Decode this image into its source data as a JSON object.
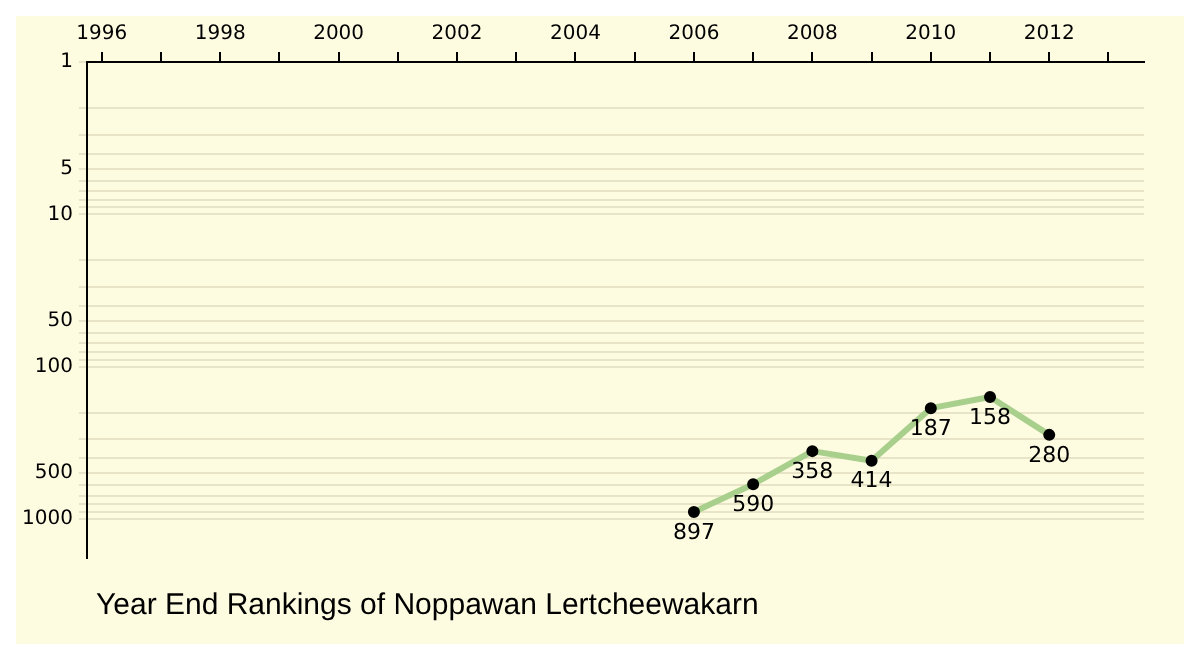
{
  "chart_data": {
    "type": "line",
    "title": "Year End Rankings of Noppawan Lertcheewakarn",
    "x": [
      2006,
      2007,
      2008,
      2009,
      2010,
      2011,
      2012
    ],
    "series": [
      {
        "color": "#a9cf8c",
        "values": [
          897,
          590,
          358,
          414,
          187,
          158,
          280
        ]
      }
    ],
    "xlim": [
      1995.75,
      2013.6
    ],
    "xticks": [
      1996,
      {
        "value": 1997,
        "label": null
      },
      1998,
      {
        "value": 1999,
        "label": null
      },
      2000,
      {
        "value": 2001,
        "label": null
      },
      2002,
      {
        "value": 2003,
        "label": null
      },
      2004,
      {
        "value": 2005,
        "label": null
      },
      2006,
      {
        "value": 2007,
        "label": null
      },
      2008,
      {
        "value": 2009,
        "label": null
      },
      2010,
      {
        "value": 2011,
        "label": null
      },
      2012,
      {
        "value": 2013,
        "label": null
      }
    ],
    "ylim": [
      1800,
      1
    ],
    "yticks": [
      1,
      {
        "value": 2,
        "label": null
      },
      {
        "value": 3,
        "label": null
      },
      {
        "value": 4,
        "label": null
      },
      5,
      {
        "value": 6,
        "label": null
      },
      {
        "value": 7,
        "label": null
      },
      {
        "value": 8,
        "label": null
      },
      {
        "value": 9,
        "label": null
      },
      10,
      {
        "value": 20,
        "label": null
      },
      {
        "value": 30,
        "label": null
      },
      {
        "value": 40,
        "label": null
      },
      50,
      {
        "value": 60,
        "label": null
      },
      {
        "value": 70,
        "label": null
      },
      {
        "value": 80,
        "label": null
      },
      {
        "value": 90,
        "label": null
      },
      100,
      {
        "value": 200,
        "label": null
      },
      {
        "value": 300,
        "label": null
      },
      {
        "value": 400,
        "label": null
      },
      500,
      {
        "value": 600,
        "label": null
      },
      {
        "value": 700,
        "label": null
      },
      {
        "value": 800,
        "label": null
      },
      {
        "value": 900,
        "label": null
      },
      1000
    ],
    "log": "y",
    "grid": "y",
    "marker": "circle",
    "line_style": "solid",
    "data_labels": true,
    "legend": false
  }
}
